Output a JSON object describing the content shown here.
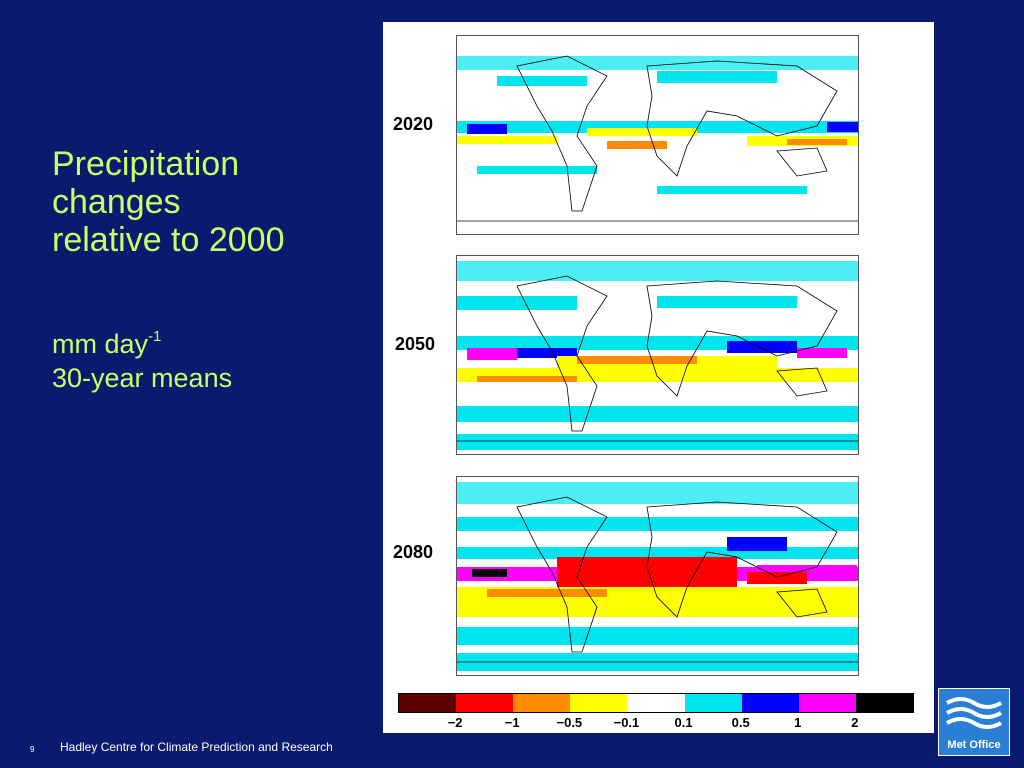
{
  "slide": {
    "title_lines": [
      "Precipitation",
      "changes",
      "relative to 2000"
    ],
    "units_main": "mm day",
    "units_exp": "-1",
    "means": "30-year means",
    "slide_number": "9",
    "footer": "Hadley Centre for Climate Prediction and Research",
    "logo_text": "Met Office"
  },
  "figure": {
    "panels": [
      {
        "label": "2020"
      },
      {
        "label": "2050"
      },
      {
        "label": "2080"
      }
    ],
    "colorbar": {
      "colors": [
        "#5c0000",
        "#ff0000",
        "#ff8c00",
        "#ffff00",
        "#ffffff",
        "#00e5ee",
        "#0000ff",
        "#ff00ff",
        "#000000"
      ],
      "tick_labels": [
        "−2",
        "−1",
        "−0.5",
        "−0.1",
        "0.1",
        "0.5",
        "1",
        "2"
      ]
    }
  }
}
